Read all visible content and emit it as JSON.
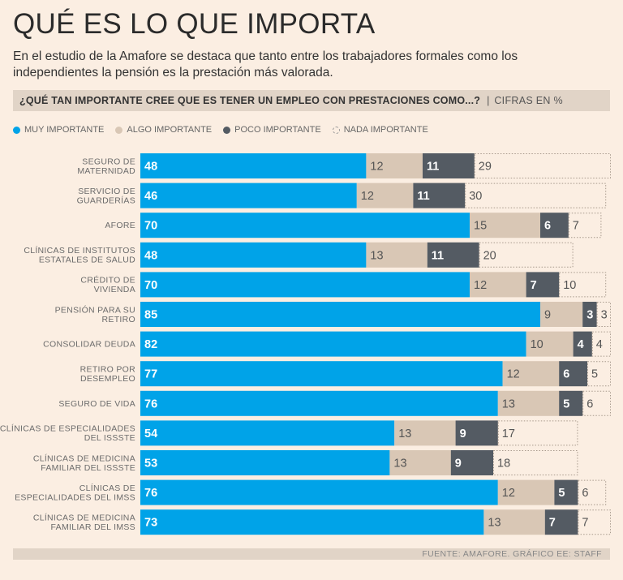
{
  "title": "QUÉ ES LO QUE IMPORTA",
  "subtitle": "En el estudio de la Amafore se destaca que tanto entre los trabajadores formales como los independientes la pensión es la prestación más valorada.",
  "question": "¿QUÉ TAN IMPORTANTE CREE QUE ES TENER UN EMPLEO CON PRESTACIONES COMO...?",
  "question_separator": "|",
  "units": "CIFRAS EN %",
  "legend": [
    "MUY IMPORTANTE",
    "ALGO IMPORTANTE",
    "POCO IMPORTANTE",
    "NADA IMPORTANTE"
  ],
  "source": "FUENTE: AMAFORE.  GRÁFICO EE: STAFF",
  "colors": {
    "muy": "#00a3e8",
    "algo": "#d9c7b5",
    "poco": "#545b63",
    "nada_border": "#a89a8d"
  },
  "chart_data": {
    "type": "bar",
    "orientation": "horizontal",
    "stacked": true,
    "unit": "%",
    "categories": [
      [
        "SEGURO DE",
        "MATERNIDAD"
      ],
      [
        "SERVICIO DE",
        "GUARDERÍAS"
      ],
      [
        "AFORE"
      ],
      [
        "CLÍNICAS DE INSTITUTOS",
        "ESTATALES DE SALUD"
      ],
      [
        "CRÉDITO DE",
        "VIVIENDA"
      ],
      [
        "PENSIÓN PARA SU",
        "RETIRO"
      ],
      [
        "CONSOLIDAR DEUDA"
      ],
      [
        "RETIRO POR",
        "DESEMPLEO"
      ],
      [
        "SEGURO DE VIDA"
      ],
      [
        "CLÍNICAS DE ESPECIALIDADES",
        "DEL ISSSTE"
      ],
      [
        "CLÍNICAS DE MEDICINA",
        "FAMILIAR DEL ISSSTE"
      ],
      [
        "CLÍNICAS DE",
        "ESPECIALIDADES DEL IMSS"
      ],
      [
        "CLÍNICAS DE MEDICINA",
        "FAMILIAR DEL IMSS"
      ]
    ],
    "series": [
      {
        "name": "MUY IMPORTANTE",
        "values": [
          48,
          46,
          70,
          48,
          70,
          85,
          82,
          77,
          76,
          54,
          53,
          76,
          73
        ]
      },
      {
        "name": "ALGO IMPORTANTE",
        "values": [
          12,
          12,
          15,
          13,
          12,
          9,
          10,
          12,
          13,
          13,
          13,
          12,
          13
        ]
      },
      {
        "name": "POCO IMPORTANTE",
        "values": [
          11,
          11,
          6,
          11,
          7,
          3,
          4,
          6,
          5,
          9,
          9,
          5,
          7
        ]
      },
      {
        "name": "NADA IMPORTANTE",
        "values": [
          29,
          30,
          7,
          20,
          10,
          3,
          4,
          5,
          6,
          17,
          18,
          6,
          7
        ]
      }
    ],
    "xlim": [
      0,
      100
    ]
  }
}
